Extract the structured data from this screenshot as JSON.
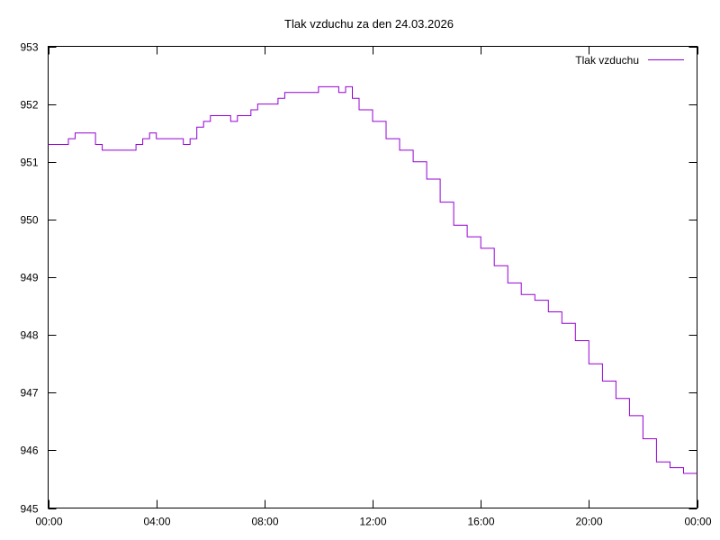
{
  "chart_data": {
    "type": "line",
    "title": "Tlak vzduchu za den 24.03.2026",
    "xlabel": "",
    "ylabel": "",
    "xlim": [
      "00:00",
      "24:00"
    ],
    "ylim": [
      945,
      953
    ],
    "x_ticks": [
      "00:00",
      "04:00",
      "08:00",
      "12:00",
      "16:00",
      "20:00",
      "00:00"
    ],
    "y_ticks": [
      945,
      946,
      947,
      948,
      949,
      950,
      951,
      952,
      953
    ],
    "grid": false,
    "legend_position": "top-right",
    "colors": {
      "series": "#9400d3",
      "frame": "#000000"
    },
    "series": [
      {
        "name": "Tlak vzduchu",
        "x": [
          "00:00",
          "00:30",
          "00:45",
          "01:00",
          "01:30",
          "01:45",
          "02:00",
          "02:15",
          "02:30",
          "03:00",
          "03:15",
          "03:30",
          "03:45",
          "04:00",
          "04:30",
          "05:00",
          "05:15",
          "05:30",
          "05:45",
          "06:00",
          "06:30",
          "06:45",
          "07:00",
          "07:30",
          "07:45",
          "08:00",
          "08:15",
          "08:30",
          "08:45",
          "09:00",
          "09:30",
          "10:00",
          "10:30",
          "10:45",
          "11:00",
          "11:15",
          "11:30",
          "12:00",
          "12:30",
          "13:00",
          "13:30",
          "14:00",
          "14:30",
          "15:00",
          "15:30",
          "16:00",
          "16:30",
          "17:00",
          "17:30",
          "18:00",
          "18:30",
          "19:00",
          "19:30",
          "20:00",
          "20:30",
          "21:00",
          "21:30",
          "22:00",
          "22:30",
          "23:00",
          "23:30",
          "24:00"
        ],
        "values": [
          951.3,
          951.3,
          951.4,
          951.5,
          951.5,
          951.3,
          951.2,
          951.2,
          951.2,
          951.2,
          951.3,
          951.4,
          951.5,
          951.4,
          951.4,
          951.3,
          951.4,
          951.6,
          951.7,
          951.8,
          951.8,
          951.7,
          951.8,
          951.9,
          952.0,
          952.0,
          952.0,
          952.1,
          952.2,
          952.2,
          952.2,
          952.3,
          952.3,
          952.2,
          952.3,
          952.1,
          951.9,
          951.7,
          951.4,
          951.2,
          951.0,
          950.7,
          950.3,
          949.9,
          949.7,
          949.5,
          949.2,
          948.9,
          948.7,
          948.6,
          948.4,
          948.2,
          947.9,
          947.5,
          947.2,
          946.9,
          946.6,
          946.2,
          945.8,
          945.7,
          945.6,
          945.6
        ]
      }
    ]
  }
}
